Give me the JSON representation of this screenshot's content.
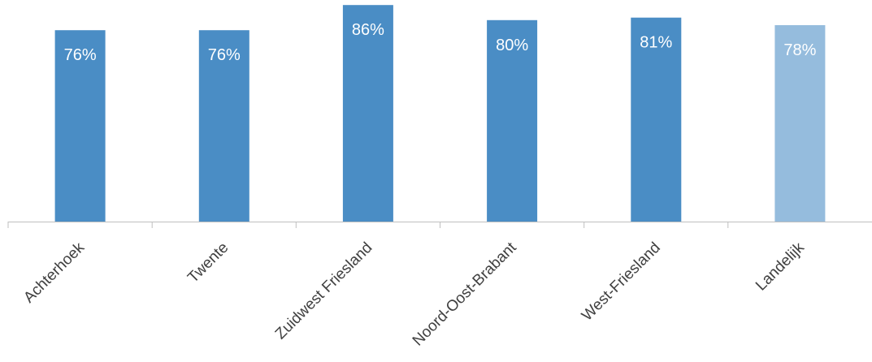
{
  "chart_data": {
    "type": "bar",
    "categories": [
      "Achterhoek",
      "Twente",
      "Zuidwest Friesland",
      "Noord-Oost-Brabant",
      "West-Friesland",
      "Landelijk"
    ],
    "values": [
      76,
      76,
      86,
      80,
      81,
      78
    ],
    "data_labels": [
      "76%",
      "76%",
      "86%",
      "80%",
      "81%",
      "78%"
    ],
    "unit": "%",
    "ylim": [
      0,
      88
    ],
    "grid": false,
    "legend": "none",
    "colors": {
      "bar": "#4A8DC5",
      "highlight_bar": "#95BCDD",
      "axis": "#BFBFBF"
    },
    "highlight_index": 5
  }
}
